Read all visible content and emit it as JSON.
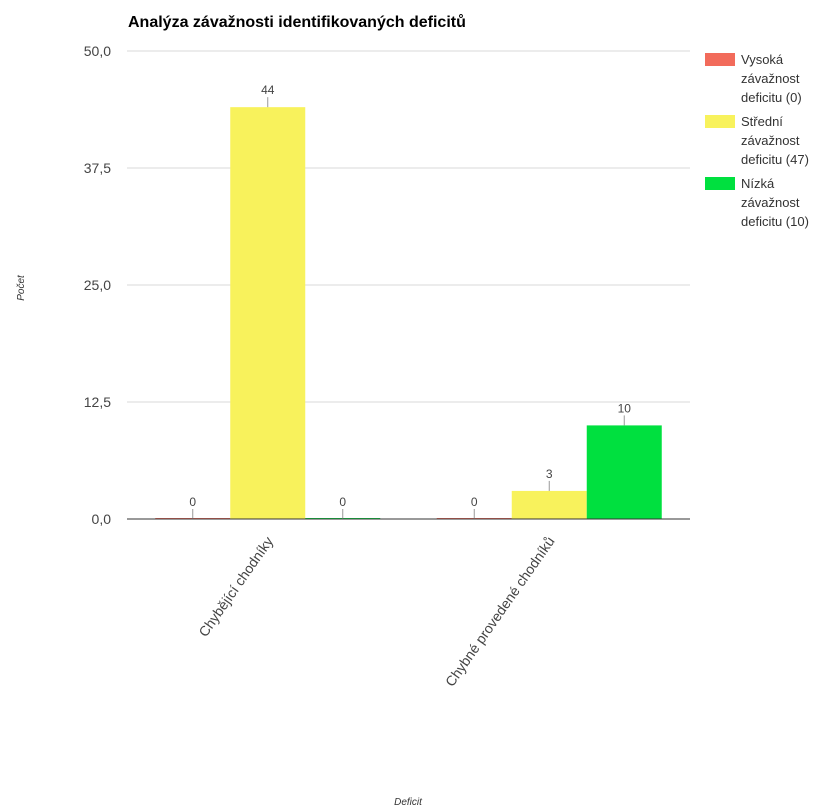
{
  "chart_data": {
    "type": "bar",
    "title": "Analýza závažnosti identifikovaných deficitů",
    "xlabel": "Deficit",
    "ylabel": "Počet",
    "categories": [
      "Chybějící chodníky",
      "Chybné provedené chodníků"
    ],
    "series": [
      {
        "name": "Vysoká závažnost deficitu (0)",
        "legend_lines": [
          "Vysoká",
          "závažnost",
          "deficitu (0)"
        ],
        "color": "#f26b5b",
        "values": [
          0,
          0
        ]
      },
      {
        "name": "Střední závažnost deficitu (47)",
        "legend_lines": [
          "Střední",
          "závažnost",
          "deficitu (47)"
        ],
        "color": "#f8f25c",
        "values": [
          44,
          3
        ]
      },
      {
        "name": "Nízká závažnost deficitu (10)",
        "legend_lines": [
          "Nízká",
          "závažnost",
          "deficitu (10)"
        ],
        "color": "#00e03f",
        "values": [
          0,
          10
        ]
      }
    ],
    "ylim": [
      0,
      50
    ],
    "yticks": [
      "0,0",
      "12,5",
      "25,0",
      "37,5",
      "50,0"
    ],
    "ytick_values": [
      0,
      12.5,
      25,
      37.5,
      50
    ],
    "grid": true,
    "legend_position": "right"
  }
}
